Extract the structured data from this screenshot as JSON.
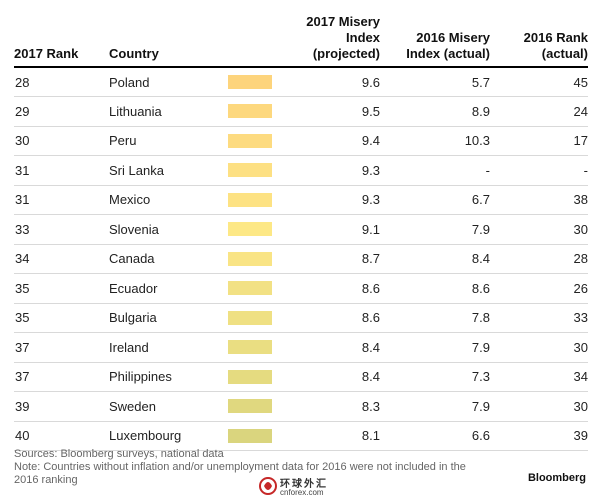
{
  "headers": {
    "rank_2017": "2017 Rank",
    "country": "Country",
    "index_2017_line1": "2017 Misery Index",
    "index_2017_line2": "(projected)",
    "index_2016_line1": "2016 Misery",
    "index_2016_line2": "Index (actual)",
    "rank_2016_line1": "2016 Rank",
    "rank_2016_line2": "(actual)"
  },
  "rows": [
    {
      "rank_2017": "28",
      "country": "Poland",
      "index_2017": "9.6",
      "index_2016": "5.7",
      "rank_2016": "45",
      "swatch_color": "#fdd47c"
    },
    {
      "rank_2017": "29",
      "country": "Lithuania",
      "index_2017": "9.5",
      "index_2016": "8.9",
      "rank_2016": "24",
      "swatch_color": "#fdd87e"
    },
    {
      "rank_2017": "30",
      "country": "Peru",
      "index_2017": "9.4",
      "index_2016": "10.3",
      "rank_2016": "17",
      "swatch_color": "#fddb80"
    },
    {
      "rank_2017": "31",
      "country": "Sri Lanka",
      "index_2017": "9.3",
      "index_2016": "-",
      "rank_2016": "-",
      "swatch_color": "#fde083"
    },
    {
      "rank_2017": "31",
      "country": "Mexico",
      "index_2017": "9.3",
      "index_2016": "6.7",
      "rank_2016": "38",
      "swatch_color": "#fde283"
    },
    {
      "rank_2017": "33",
      "country": "Slovenia",
      "index_2017": "9.1",
      "index_2016": "7.9",
      "rank_2016": "30",
      "swatch_color": "#fde886"
    },
    {
      "rank_2017": "34",
      "country": "Canada",
      "index_2017": "8.7",
      "index_2016": "8.4",
      "rank_2016": "28",
      "swatch_color": "#f9e485"
    },
    {
      "rank_2017": "35",
      "country": "Ecuador",
      "index_2017": "8.6",
      "index_2016": "8.6",
      "rank_2016": "26",
      "swatch_color": "#f2e184"
    },
    {
      "rank_2017": "35",
      "country": "Bulgaria",
      "index_2017": "8.6",
      "index_2016": "7.8",
      "rank_2016": "33",
      "swatch_color": "#efe083"
    },
    {
      "rank_2017": "37",
      "country": "Ireland",
      "index_2017": "8.4",
      "index_2016": "7.9",
      "rank_2016": "30",
      "swatch_color": "#eade82"
    },
    {
      "rank_2017": "37",
      "country": "Philippines",
      "index_2017": "8.4",
      "index_2016": "7.3",
      "rank_2016": "34",
      "swatch_color": "#e5db80"
    },
    {
      "rank_2017": "39",
      "country": "Sweden",
      "index_2017": "8.3",
      "index_2016": "7.9",
      "rank_2016": "30",
      "swatch_color": "#e0d87f"
    },
    {
      "rank_2017": "40",
      "country": "Luxembourg",
      "index_2017": "8.1",
      "index_2016": "6.6",
      "rank_2016": "39",
      "swatch_color": "#dad57e"
    }
  ],
  "footer": {
    "sources": "Sources: Bloomberg surveys, national data",
    "note": "Note: Countries without inflation and/or unemployment data for 2016 were not included in the 2016 ranking",
    "brand": "Bloomberg"
  },
  "watermark": {
    "text": "环球外汇",
    "sub": "cnforex.com"
  }
}
